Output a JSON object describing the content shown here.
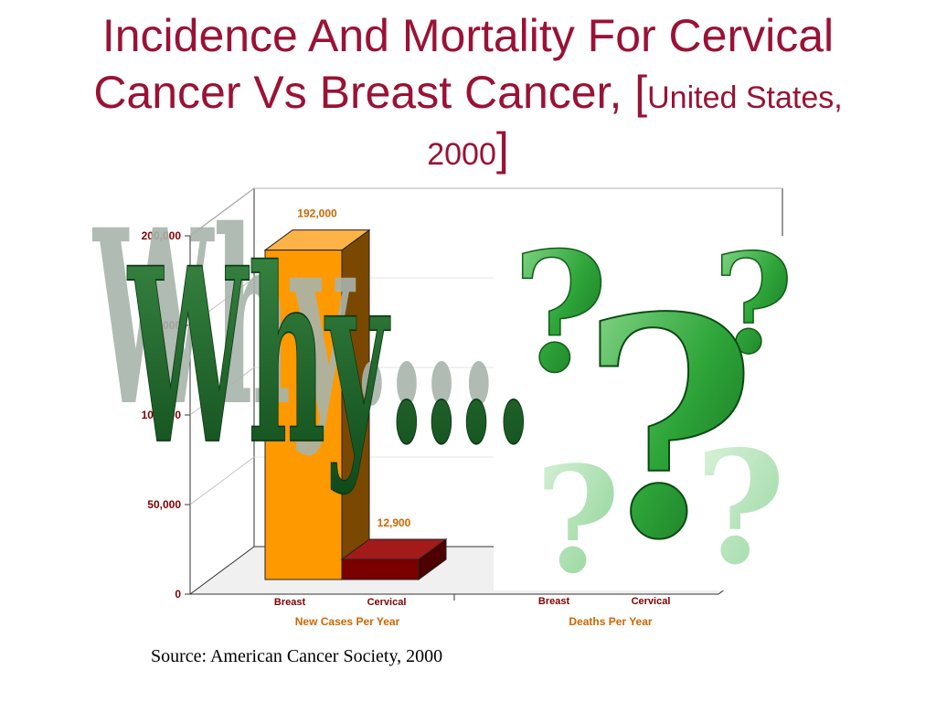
{
  "slide": {
    "title_line1": "Incidence And Mortality  For Cervical",
    "title_line2_main": "Cancer Vs Breast Cancer, [",
    "title_line2_small": "United States,",
    "title_line3_small": "2000",
    "title_line3_close": "]",
    "source": "Source: American Cancer Society, 2000",
    "overlay_text": "Why….",
    "overlay_icon": "question-marks-icon"
  },
  "chart_data": {
    "type": "bar",
    "title": "",
    "xlabel": "",
    "ylabel": "",
    "ylim": [
      0,
      200000
    ],
    "yticks": [
      0,
      50000,
      100000,
      150000,
      200000
    ],
    "ytick_labels": [
      "0",
      "50,000",
      "100,000",
      "150,000",
      "200,000"
    ],
    "grid": true,
    "groups": [
      {
        "name": "New Cases  Per Year",
        "categories": [
          "Breast",
          "Cervical"
        ],
        "values": [
          192000,
          12900
        ],
        "value_labels": [
          "192,000",
          "12,900"
        ]
      },
      {
        "name": "Deaths Per Year",
        "categories": [
          "Breast",
          "Cervical"
        ],
        "values": [
          null,
          null
        ],
        "value_labels": []
      }
    ],
    "colors": {
      "breast_front": "#ff9900",
      "breast_side": "#7a4800",
      "cervical_front": "#7a0000",
      "cervical_top": "#a31a1a",
      "label": "#cc6600",
      "tick_label": "#800000",
      "category_label": "#800000"
    }
  }
}
